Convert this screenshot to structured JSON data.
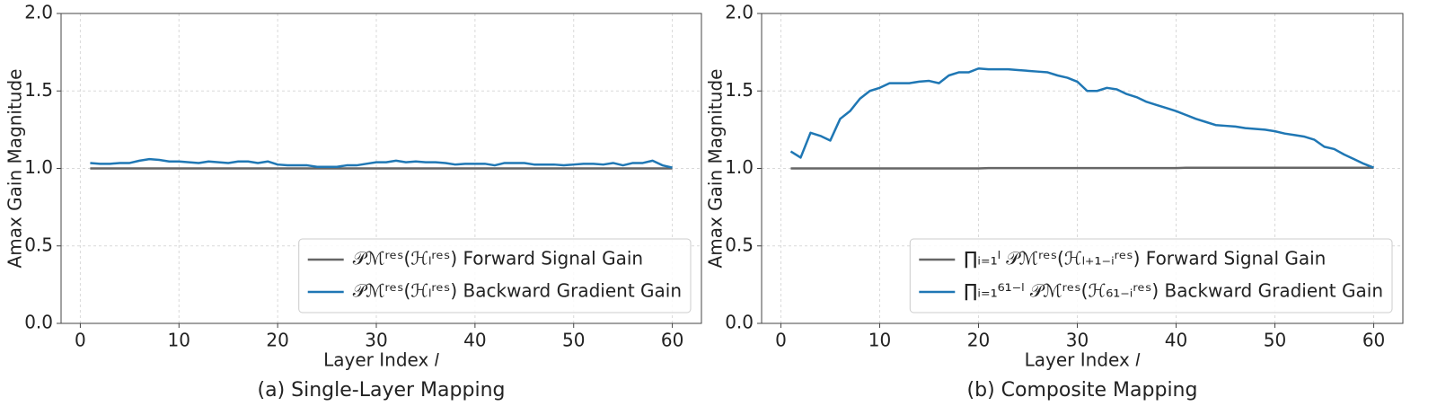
{
  "chart_data": [
    {
      "type": "line",
      "caption": "(a) Single-Layer Mapping",
      "xlabel": "Layer Index 𝑙",
      "ylabel": "Amax Gain Magnitude",
      "x": [
        1,
        2,
        3,
        4,
        5,
        6,
        7,
        8,
        9,
        10,
        11,
        12,
        13,
        14,
        15,
        16,
        17,
        18,
        19,
        20,
        21,
        22,
        23,
        24,
        25,
        26,
        27,
        28,
        29,
        30,
        31,
        32,
        33,
        34,
        35,
        36,
        37,
        38,
        39,
        40,
        41,
        42,
        43,
        44,
        45,
        46,
        47,
        48,
        49,
        50,
        51,
        52,
        53,
        54,
        55,
        56,
        57,
        58,
        59,
        60
      ],
      "xlim": [
        -1.95,
        62.95
      ],
      "xticks": [
        0,
        10,
        20,
        30,
        40,
        50,
        60
      ],
      "ylim": [
        0,
        2
      ],
      "yticks": [
        {
          "value": 0,
          "label": "0.0"
        },
        {
          "value": 0.5,
          "label": "0.5"
        },
        {
          "value": 1,
          "label": "1.0"
        },
        {
          "value": 1.5,
          "label": "1.5"
        },
        {
          "value": 2,
          "label": "2.0"
        }
      ],
      "grid": true,
      "legend": "lower right",
      "series": [
        {
          "name": "𝒫ℳʳᵉˢ(ℋₗʳᵉˢ) Forward Signal Gain",
          "color": "#666666",
          "values": [
            1.0,
            1.0,
            1.0,
            1.0,
            1.0,
            1.0,
            1.0,
            1.0,
            1.0,
            1.0,
            1.0,
            1.0,
            1.0,
            1.0,
            1.0,
            1.0,
            1.0,
            1.0,
            1.0,
            1.0,
            1.0,
            1.0,
            1.0,
            1.0,
            1.0,
            1.0,
            1.0,
            1.0,
            1.0,
            1.0,
            1.0,
            1.0,
            1.0,
            1.0,
            1.0,
            1.0,
            1.0,
            1.0,
            1.0,
            1.0,
            1.0,
            1.0,
            1.0,
            1.0,
            1.0,
            1.0,
            1.0,
            1.0,
            1.0,
            1.0,
            1.0,
            1.0,
            1.0,
            1.0,
            1.0,
            1.0,
            1.0,
            1.0,
            1.0,
            1.0
          ]
        },
        {
          "name": "𝒫ℳʳᵉˢ(ℋₗʳᵉˢ) Backward Gradient Gain",
          "color": "#1f77b4",
          "values": [
            1.035,
            1.03,
            1.03,
            1.035,
            1.035,
            1.05,
            1.06,
            1.055,
            1.045,
            1.045,
            1.04,
            1.035,
            1.045,
            1.04,
            1.035,
            1.045,
            1.045,
            1.035,
            1.045,
            1.025,
            1.02,
            1.02,
            1.02,
            1.01,
            1.01,
            1.01,
            1.02,
            1.02,
            1.03,
            1.04,
            1.04,
            1.05,
            1.04,
            1.045,
            1.04,
            1.04,
            1.035,
            1.025,
            1.03,
            1.03,
            1.03,
            1.02,
            1.035,
            1.035,
            1.035,
            1.025,
            1.025,
            1.025,
            1.02,
            1.025,
            1.03,
            1.03,
            1.025,
            1.035,
            1.02,
            1.035,
            1.035,
            1.05,
            1.02,
            1.005
          ]
        }
      ]
    },
    {
      "type": "line",
      "caption": "(b) Composite Mapping",
      "xlabel": "Layer Index 𝑙",
      "ylabel": "Amax Gain Magnitude",
      "x": [
        1,
        2,
        3,
        4,
        5,
        6,
        7,
        8,
        9,
        10,
        11,
        12,
        13,
        14,
        15,
        16,
        17,
        18,
        19,
        20,
        21,
        22,
        23,
        24,
        25,
        26,
        27,
        28,
        29,
        30,
        31,
        32,
        33,
        34,
        35,
        36,
        37,
        38,
        39,
        40,
        41,
        42,
        43,
        44,
        45,
        46,
        47,
        48,
        49,
        50,
        51,
        52,
        53,
        54,
        55,
        56,
        57,
        58,
        59,
        60
      ],
      "xlim": [
        -1.95,
        62.95
      ],
      "xticks": [
        0,
        10,
        20,
        30,
        40,
        50,
        60
      ],
      "ylim": [
        0,
        2
      ],
      "yticks": [
        {
          "value": 0,
          "label": "0.0"
        },
        {
          "value": 0.5,
          "label": "0.5"
        },
        {
          "value": 1,
          "label": "1.0"
        },
        {
          "value": 1.5,
          "label": "1.5"
        },
        {
          "value": 2,
          "label": "2.0"
        }
      ],
      "grid": true,
      "legend": "lower right",
      "series": [
        {
          "name": "∏ᵢ₌₁ˡ 𝒫ℳʳᵉˢ(ℋₗ₊₁₋ᵢʳᵉˢ) Forward Signal Gain",
          "color": "#666666",
          "values": [
            1.0,
            1.0,
            1.0,
            1.0,
            1.0,
            1.0,
            1.0,
            1.0,
            1.0,
            1.0,
            1.0,
            1.0,
            1.0,
            1.0,
            1.0,
            1.0,
            1.0,
            1.0,
            1.0,
            1.0,
            1.002,
            1.002,
            1.002,
            1.002,
            1.002,
            1.002,
            1.002,
            1.002,
            1.002,
            1.002,
            1.002,
            1.002,
            1.002,
            1.002,
            1.002,
            1.002,
            1.002,
            1.002,
            1.002,
            1.002,
            1.004,
            1.004,
            1.004,
            1.004,
            1.004,
            1.004,
            1.004,
            1.004,
            1.004,
            1.004,
            1.004,
            1.004,
            1.004,
            1.004,
            1.004,
            1.004,
            1.004,
            1.004,
            1.004,
            1.005
          ]
        },
        {
          "name": "∏ᵢ₌₁⁶¹⁻ˡ 𝒫ℳʳᵉˢ(ℋ₆₁₋ᵢʳᵉˢ) Backward Gradient Gain",
          "color": "#1f77b4",
          "values": [
            1.11,
            1.07,
            1.23,
            1.21,
            1.18,
            1.32,
            1.37,
            1.45,
            1.5,
            1.52,
            1.55,
            1.55,
            1.55,
            1.56,
            1.565,
            1.55,
            1.6,
            1.62,
            1.62,
            1.645,
            1.64,
            1.64,
            1.64,
            1.635,
            1.63,
            1.625,
            1.62,
            1.6,
            1.585,
            1.56,
            1.5,
            1.5,
            1.52,
            1.51,
            1.48,
            1.46,
            1.43,
            1.41,
            1.39,
            1.37,
            1.345,
            1.32,
            1.3,
            1.28,
            1.275,
            1.27,
            1.26,
            1.255,
            1.25,
            1.24,
            1.225,
            1.215,
            1.205,
            1.185,
            1.14,
            1.125,
            1.09,
            1.06,
            1.03,
            1.005
          ]
        }
      ]
    }
  ]
}
